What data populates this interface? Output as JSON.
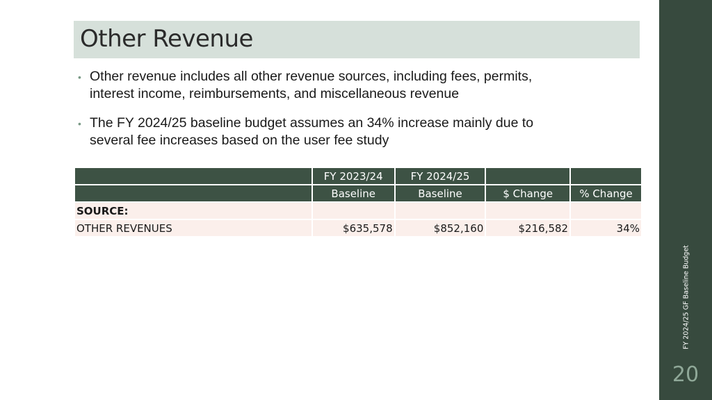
{
  "slide": {
    "title": "Other Revenue",
    "bullets": [
      "Other revenue includes all other revenue sources, including fees, permits, interest income, reimbursements, and miscellaneous revenue",
      "The FY 2024/25 baseline budget assumes an 34% increase mainly due to several fee increases based on the user fee study"
    ],
    "page_number": "20",
    "side_label": "FY 2024/25 GF Baseline Budget"
  },
  "table": {
    "header_row1": [
      "",
      "FY 2023/24",
      "FY 2024/25",
      "",
      ""
    ],
    "header_row2": [
      "",
      "Baseline",
      "Baseline",
      "$ Change",
      "% Change"
    ],
    "source_label": "SOURCE:",
    "rows": [
      {
        "label": "OTHER REVENUES",
        "fy2324": "$635,578",
        "fy2425": "$852,160",
        "change": "$216,582",
        "pct": "34%"
      }
    ]
  },
  "colors": {
    "sidebar": "#374a3e",
    "title_bar": "#d6e0da",
    "table_header": "#3d5244",
    "table_body": "#fbefeb"
  }
}
